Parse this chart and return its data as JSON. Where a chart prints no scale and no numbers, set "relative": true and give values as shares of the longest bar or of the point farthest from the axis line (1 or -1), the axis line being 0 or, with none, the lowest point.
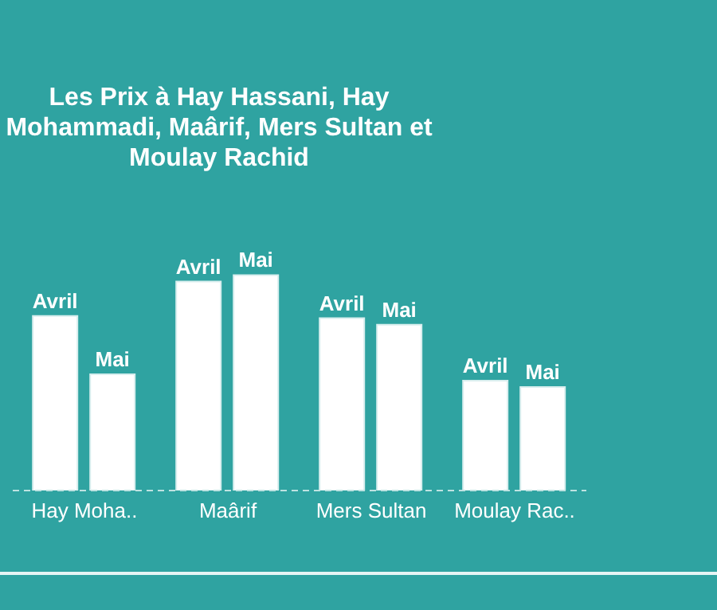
{
  "chart_data": {
    "type": "bar",
    "title": "Les Prix à Hay Hassani, Hay Mohammadi, Maârif, Mers Sultan et Moulay Rachid",
    "categories": [
      "Hay Moha..",
      "Maârif",
      "Mers Sultan",
      "Moulay Rac.."
    ],
    "relative": true,
    "series": [
      {
        "name": "Avril",
        "color": "#ffffff",
        "values": [
          0.81,
          0.97,
          0.8,
          0.51
        ]
      },
      {
        "name": "Mai",
        "color": "#ffffff",
        "values": [
          0.54,
          1,
          0.77,
          0.48
        ]
      }
    ],
    "legend": false,
    "grid": false
  }
}
